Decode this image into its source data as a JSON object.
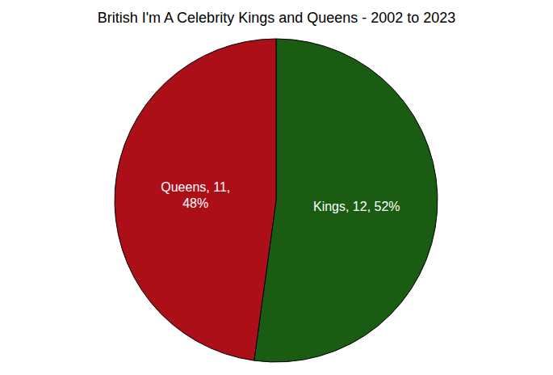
{
  "chart_data": {
    "type": "pie",
    "title": "British I'm A Celebrity Kings and Queens - 2002 to 2023",
    "values": [
      12,
      11
    ],
    "value_labels": [
      "Kings, 12, 52%",
      "Queens, 11, 48%"
    ],
    "colors": [
      "#1a5c12",
      "#ad0f19"
    ],
    "data_labels": true
  }
}
